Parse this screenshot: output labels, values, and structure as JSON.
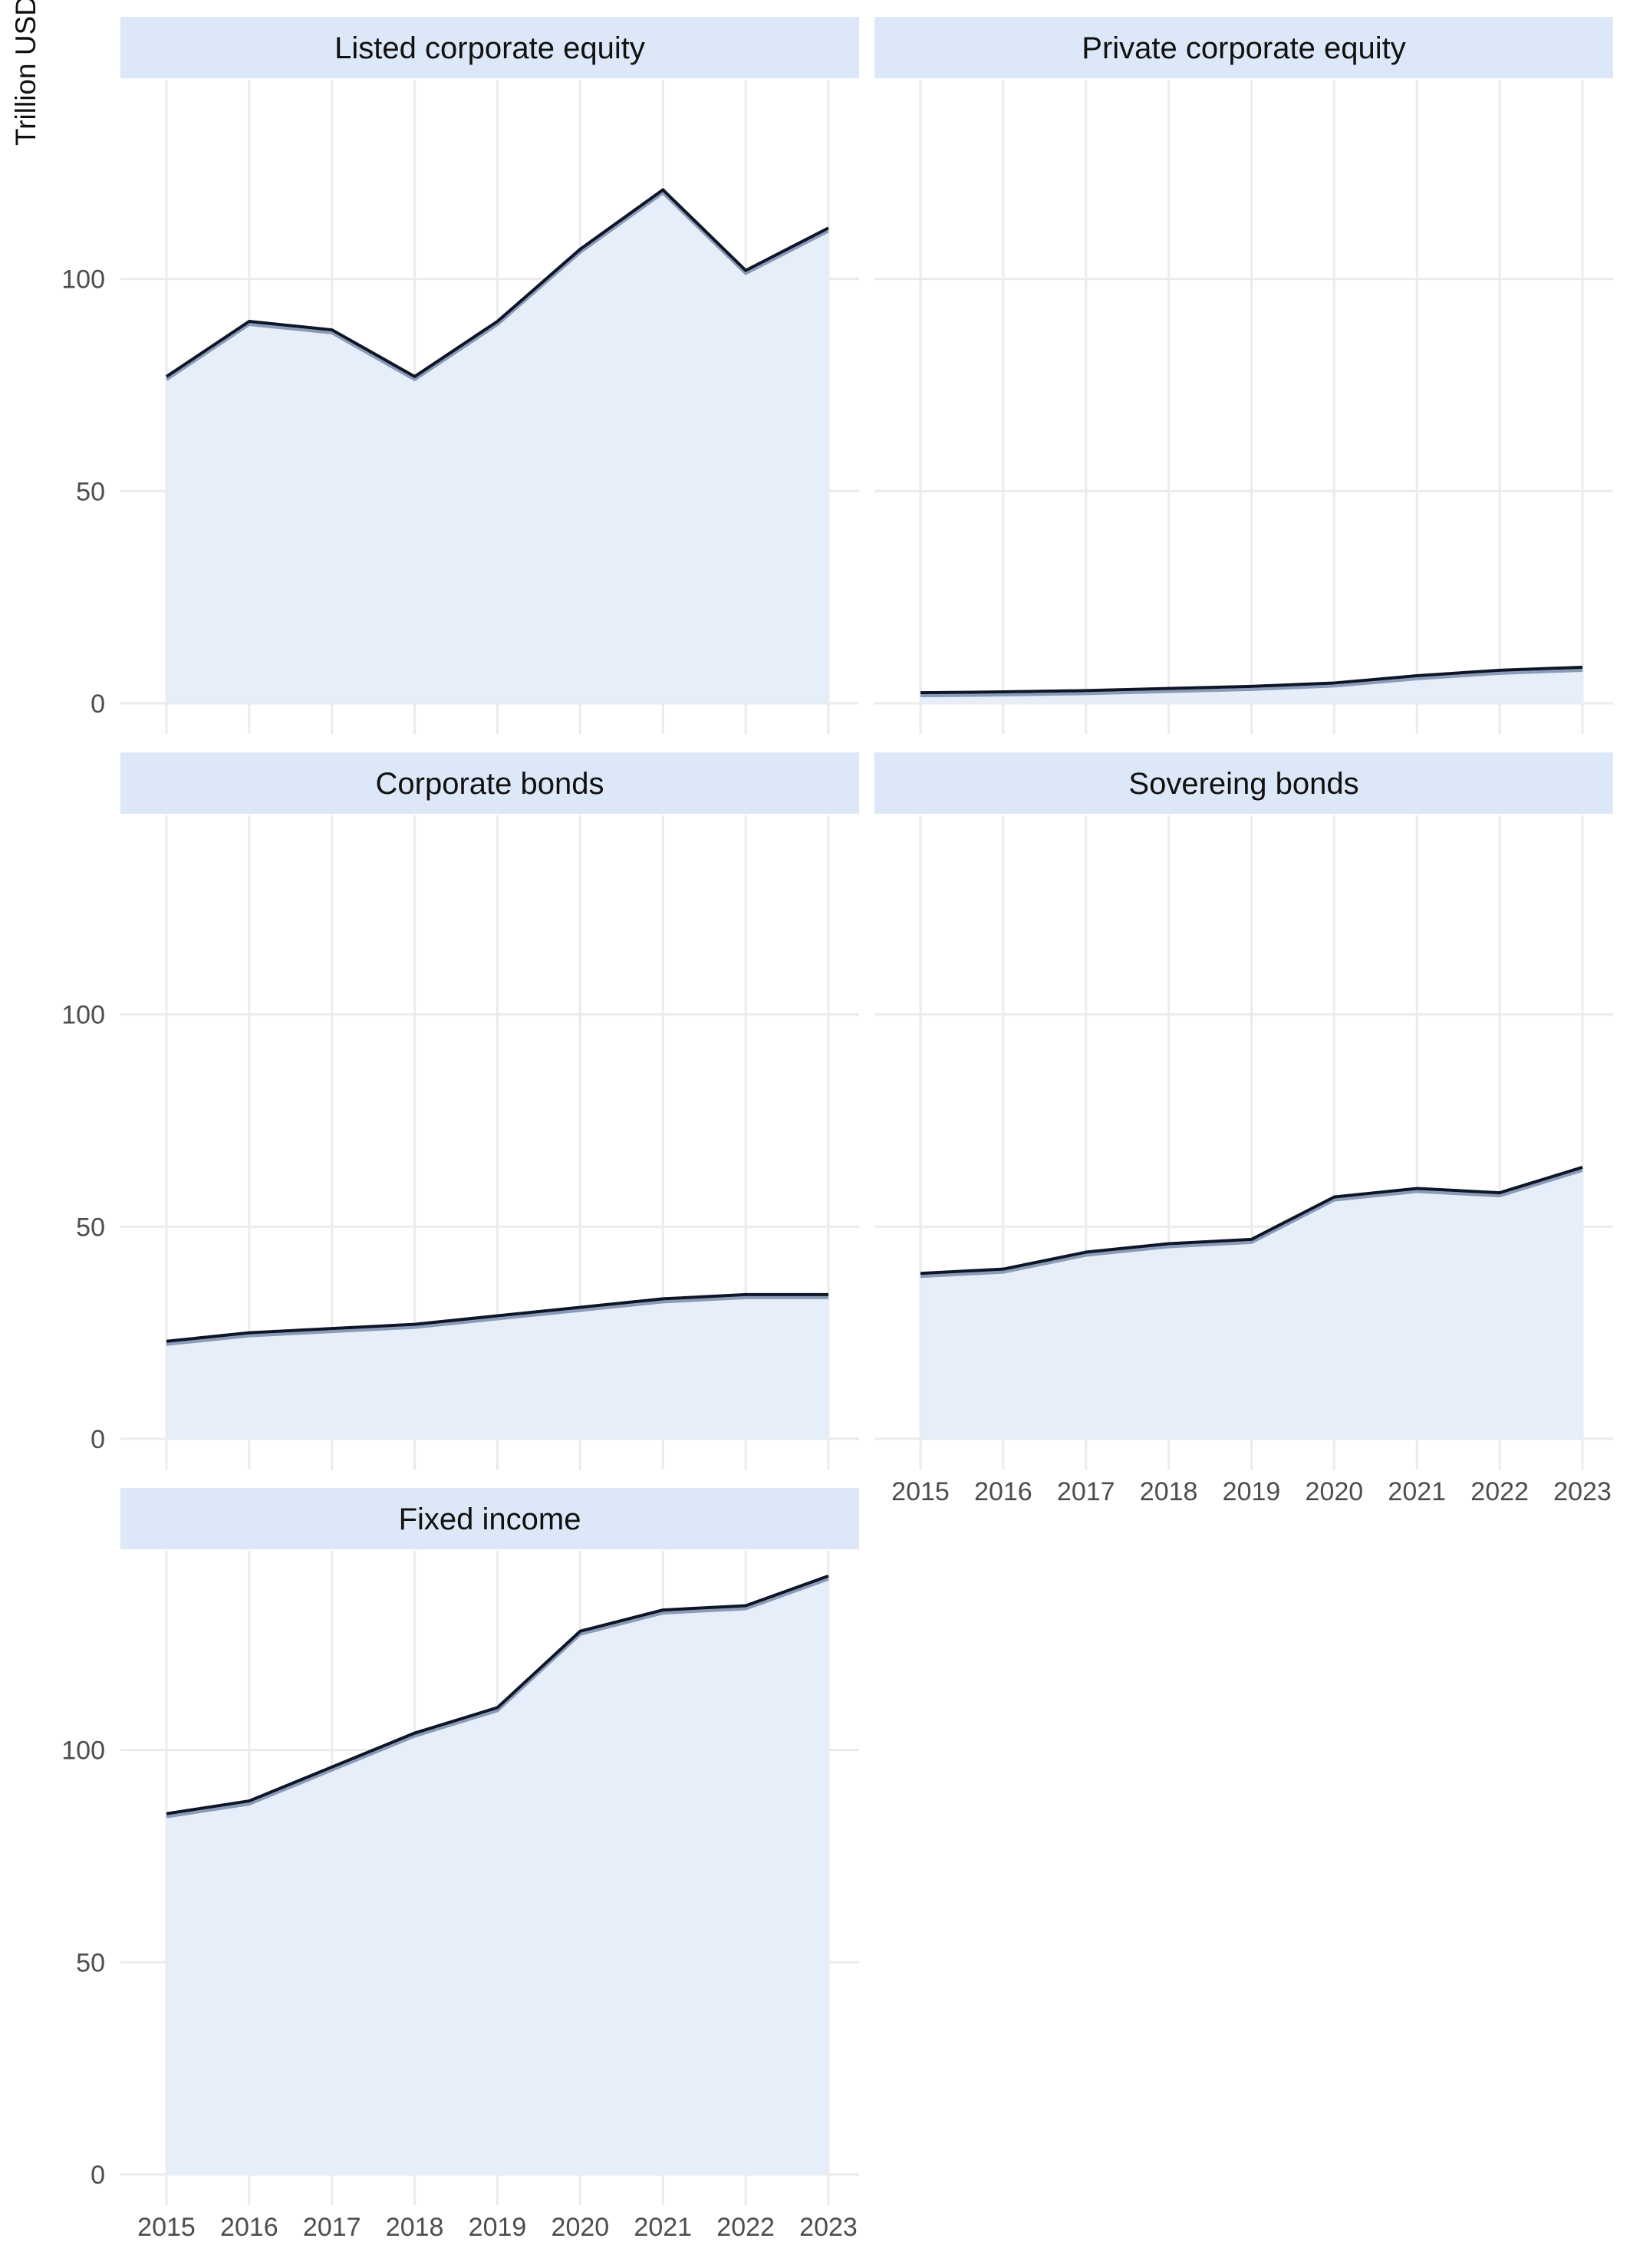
{
  "colors": {
    "strip_fill": "#dce7f7",
    "area_fill": "#e6eef9",
    "line_color": "#0d1526",
    "line_shadow": "#8a9bb8",
    "grid": "#ebebeb",
    "tick_text": "#4d4d4d",
    "title_text": "#111111"
  },
  "chart_data": {
    "type": "area",
    "layout": "faceted 2-column grid, shared y axis",
    "ylabel": "Trillion USD",
    "ylim": [
      0,
      150
    ],
    "yticks": [
      0,
      50,
      100
    ],
    "x": [
      2015,
      2016,
      2017,
      2018,
      2019,
      2020,
      2021,
      2022,
      2023
    ],
    "grid": true,
    "panels": [
      {
        "title": "Listed corporate equity",
        "values": [
          77,
          90,
          88,
          77,
          90,
          107,
          121,
          102,
          112
        ],
        "show_x_labels": false
      },
      {
        "title": "Private corporate equity",
        "values": [
          2.5,
          2.7,
          3.0,
          3.5,
          4.0,
          4.8,
          6.5,
          7.8,
          8.5
        ],
        "show_x_labels": false
      },
      {
        "title": "Corporate bonds",
        "values": [
          23,
          25,
          26,
          27,
          29,
          31,
          33,
          34,
          34
        ],
        "show_x_labels": false
      },
      {
        "title": "Sovereing bonds",
        "values": [
          39,
          40,
          44,
          46,
          47,
          57,
          59,
          58,
          64
        ],
        "show_x_labels": true
      },
      {
        "title": "Fixed income",
        "values": [
          85,
          88,
          96,
          104,
          110,
          128,
          133,
          134,
          141
        ],
        "show_x_labels": true
      }
    ]
  }
}
